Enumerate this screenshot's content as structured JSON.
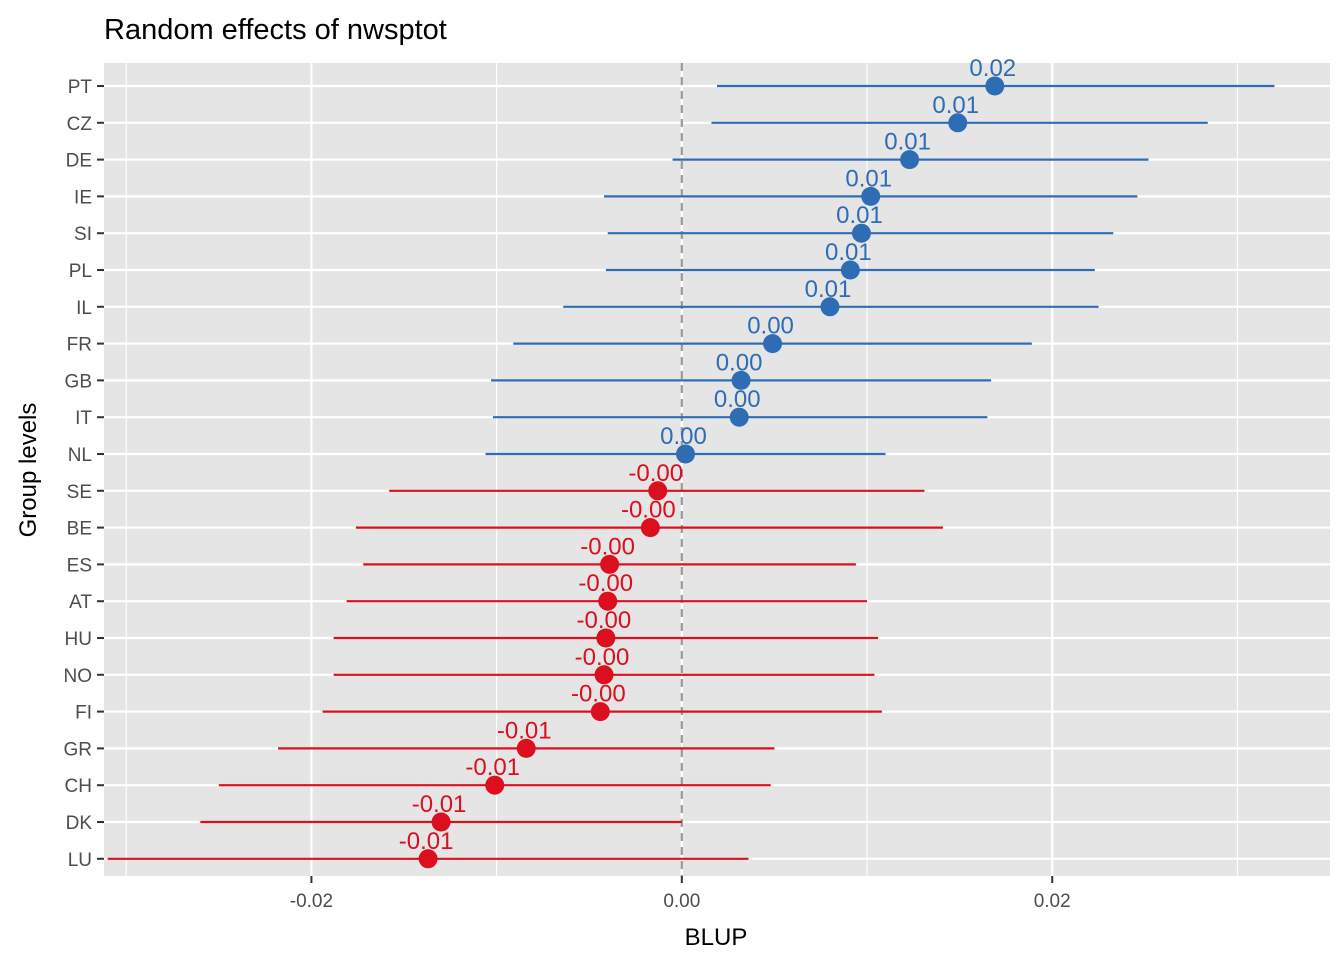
{
  "chart_data": {
    "type": "scatter",
    "title": "Random effects of  nwsptot",
    "xlabel": "BLUP",
    "ylabel": "Group levels",
    "xlim": [
      -0.0312,
      0.035
    ],
    "xticks": [
      -0.02,
      0.0,
      0.02
    ],
    "xtick_labels": [
      "-0.02",
      "0.00",
      "0.02"
    ],
    "grid": true,
    "reference_line": {
      "x": 0,
      "style": "dashed",
      "color": "#999999"
    },
    "colors": {
      "positive": "#2E6DB4",
      "negative": "#DC0F1F",
      "panel": "#E5E5E5",
      "grid": "#FFFFFF"
    },
    "categories": [
      "PT",
      "CZ",
      "DE",
      "IE",
      "SI",
      "PL",
      "IL",
      "FR",
      "GB",
      "IT",
      "NL",
      "SE",
      "BE",
      "ES",
      "AT",
      "HU",
      "NO",
      "FI",
      "GR",
      "CH",
      "DK",
      "LU"
    ],
    "points": [
      {
        "group": "PT",
        "estimate": 0.0169,
        "low": 0.0019,
        "high": 0.032,
        "label": "0.02"
      },
      {
        "group": "CZ",
        "estimate": 0.0149,
        "low": 0.0016,
        "high": 0.0284,
        "label": "0.01"
      },
      {
        "group": "DE",
        "estimate": 0.0123,
        "low": -0.0005,
        "high": 0.0252,
        "label": "0.01"
      },
      {
        "group": "IE",
        "estimate": 0.0102,
        "low": -0.0042,
        "high": 0.0246,
        "label": "0.01"
      },
      {
        "group": "SI",
        "estimate": 0.0097,
        "low": -0.004,
        "high": 0.0233,
        "label": "0.01"
      },
      {
        "group": "PL",
        "estimate": 0.0091,
        "low": -0.0041,
        "high": 0.0223,
        "label": "0.01"
      },
      {
        "group": "IL",
        "estimate": 0.008,
        "low": -0.0064,
        "high": 0.0225,
        "label": "0.01"
      },
      {
        "group": "FR",
        "estimate": 0.0049,
        "low": -0.0091,
        "high": 0.0189,
        "label": "0.00"
      },
      {
        "group": "GB",
        "estimate": 0.0032,
        "low": -0.0103,
        "high": 0.0167,
        "label": "0.00"
      },
      {
        "group": "IT",
        "estimate": 0.0031,
        "low": -0.0102,
        "high": 0.0165,
        "label": "0.00"
      },
      {
        "group": "NL",
        "estimate": 0.0002,
        "low": -0.0106,
        "high": 0.011,
        "label": "0.00"
      },
      {
        "group": "SE",
        "estimate": -0.0013,
        "low": -0.0158,
        "high": 0.0131,
        "label": "-0.00"
      },
      {
        "group": "BE",
        "estimate": -0.0017,
        "low": -0.0176,
        "high": 0.0141,
        "label": "-0.00"
      },
      {
        "group": "ES",
        "estimate": -0.0039,
        "low": -0.0172,
        "high": 0.0094,
        "label": "-0.00"
      },
      {
        "group": "AT",
        "estimate": -0.004,
        "low": -0.0181,
        "high": 0.01,
        "label": "-0.00"
      },
      {
        "group": "HU",
        "estimate": -0.0041,
        "low": -0.0188,
        "high": 0.0106,
        "label": "-0.00"
      },
      {
        "group": "NO",
        "estimate": -0.0042,
        "low": -0.0188,
        "high": 0.0104,
        "label": "-0.00"
      },
      {
        "group": "FI",
        "estimate": -0.0044,
        "low": -0.0194,
        "high": 0.0108,
        "label": "-0.00"
      },
      {
        "group": "GR",
        "estimate": -0.0084,
        "low": -0.0218,
        "high": 0.005,
        "label": "-0.01"
      },
      {
        "group": "CH",
        "estimate": -0.0101,
        "low": -0.025,
        "high": 0.0048,
        "label": "-0.01"
      },
      {
        "group": "DK",
        "estimate": -0.013,
        "low": -0.026,
        "high": 0.0,
        "label": "-0.01"
      },
      {
        "group": "LU",
        "estimate": -0.0137,
        "low": -0.031,
        "high": 0.0036,
        "label": "-0.01"
      }
    ]
  }
}
